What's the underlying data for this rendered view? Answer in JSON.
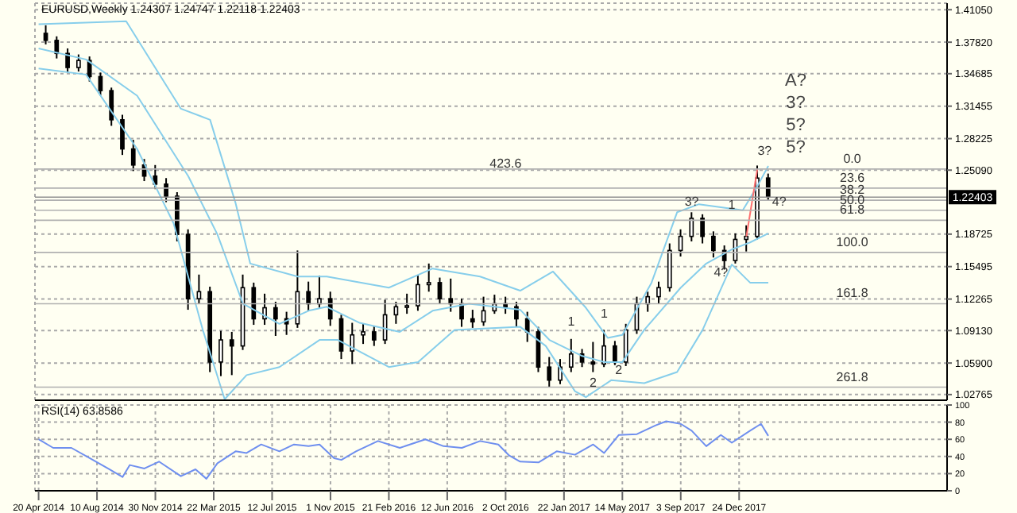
{
  "chart_data": [
    {
      "type": "candlestick",
      "title": "EURUSD,Weekly  1.24307 1.24747 1.22118 1.22403",
      "x": [
        "2014-05-04",
        "2014-05-25",
        "2014-06-15",
        "2014-07-06",
        "2014-07-27",
        "2014-08-17",
        "2014-09-07",
        "2014-09-28",
        "2014-10-19",
        "2014-11-09",
        "2014-11-30",
        "2014-12-21",
        "2015-01-11",
        "2015-02-01",
        "2015-02-22",
        "2015-03-15",
        "2015-04-05",
        "2015-04-26",
        "2015-05-17",
        "2015-06-07",
        "2015-06-28",
        "2015-07-19",
        "2015-08-09",
        "2015-08-30",
        "2015-09-20",
        "2015-10-11",
        "2015-11-01",
        "2015-11-22",
        "2015-12-13",
        "2016-01-03",
        "2016-01-24",
        "2016-02-14",
        "2016-03-06",
        "2016-03-27",
        "2016-04-17",
        "2016-05-08",
        "2016-05-29",
        "2016-06-19",
        "2016-07-10",
        "2016-07-31",
        "2016-08-21",
        "2016-09-11",
        "2016-10-02",
        "2016-10-23",
        "2016-11-13",
        "2016-12-04",
        "2016-12-25",
        "2017-01-15",
        "2017-02-05",
        "2017-02-26",
        "2017-03-19",
        "2017-04-09",
        "2017-04-30",
        "2017-05-21",
        "2017-06-11",
        "2017-07-02",
        "2017-07-23",
        "2017-08-13",
        "2017-09-03",
        "2017-09-24",
        "2017-10-15",
        "2017-11-05",
        "2017-11-26",
        "2017-12-17",
        "2018-01-07",
        "2018-01-28",
        "2018-02-18"
      ],
      "ohlc": [
        [
          1.387,
          1.395,
          1.376,
          1.38
        ],
        [
          1.38,
          1.384,
          1.362,
          1.367
        ],
        [
          1.367,
          1.372,
          1.348,
          1.353
        ],
        [
          1.353,
          1.366,
          1.349,
          1.36
        ],
        [
          1.36,
          1.364,
          1.339,
          1.344
        ],
        [
          1.344,
          1.348,
          1.325,
          1.33
        ],
        [
          1.33,
          1.333,
          1.295,
          1.301
        ],
        [
          1.301,
          1.306,
          1.266,
          1.272
        ],
        [
          1.272,
          1.281,
          1.25,
          1.256
        ],
        [
          1.256,
          1.262,
          1.24,
          1.245
        ],
        [
          1.245,
          1.256,
          1.232,
          1.237
        ],
        [
          1.237,
          1.243,
          1.219,
          1.225
        ],
        [
          1.225,
          1.229,
          1.18,
          1.187
        ],
        [
          1.187,
          1.192,
          1.112,
          1.123
        ],
        [
          1.123,
          1.147,
          1.118,
          1.13
        ],
        [
          1.13,
          1.135,
          1.05,
          1.06
        ],
        [
          1.06,
          1.091,
          1.046,
          1.082
        ],
        [
          1.082,
          1.09,
          1.047,
          1.076
        ],
        [
          1.076,
          1.147,
          1.072,
          1.134
        ],
        [
          1.134,
          1.139,
          1.097,
          1.103
        ],
        [
          1.103,
          1.128,
          1.097,
          1.114
        ],
        [
          1.114,
          1.12,
          1.086,
          1.103
        ],
        [
          1.103,
          1.11,
          1.087,
          1.098
        ],
        [
          1.098,
          1.171,
          1.094,
          1.13
        ],
        [
          1.13,
          1.14,
          1.111,
          1.118
        ],
        [
          1.118,
          1.146,
          1.114,
          1.123
        ],
        [
          1.123,
          1.13,
          1.096,
          1.103
        ],
        [
          1.103,
          1.107,
          1.063,
          1.071
        ],
        [
          1.071,
          1.099,
          1.058,
          1.087
        ],
        [
          1.087,
          1.098,
          1.078,
          1.09
        ],
        [
          1.09,
          1.096,
          1.076,
          1.082
        ],
        [
          1.082,
          1.122,
          1.078,
          1.107
        ],
        [
          1.107,
          1.12,
          1.098,
          1.115
        ],
        [
          1.115,
          1.128,
          1.108,
          1.116
        ],
        [
          1.116,
          1.146,
          1.111,
          1.137
        ],
        [
          1.137,
          1.158,
          1.13,
          1.139
        ],
        [
          1.139,
          1.144,
          1.118,
          1.123
        ],
        [
          1.123,
          1.143,
          1.11,
          1.118
        ],
        [
          1.118,
          1.123,
          1.095,
          1.103
        ],
        [
          1.103,
          1.112,
          1.094,
          1.1
        ],
        [
          1.1,
          1.125,
          1.096,
          1.111
        ],
        [
          1.111,
          1.127,
          1.108,
          1.118
        ],
        [
          1.118,
          1.125,
          1.108,
          1.115
        ],
        [
          1.115,
          1.12,
          1.095,
          1.103
        ],
        [
          1.103,
          1.11,
          1.08,
          1.09
        ],
        [
          1.09,
          1.095,
          1.05,
          1.055
        ],
        [
          1.055,
          1.065,
          1.035,
          1.042
        ],
        [
          1.042,
          1.063,
          1.038,
          1.055
        ],
        [
          1.055,
          1.083,
          1.05,
          1.068
        ],
        [
          1.068,
          1.073,
          1.055,
          1.06
        ],
        [
          1.06,
          1.08,
          1.05,
          1.058
        ],
        [
          1.058,
          1.092,
          1.055,
          1.076
        ],
        [
          1.076,
          1.081,
          1.057,
          1.06
        ],
        [
          1.06,
          1.098,
          1.056,
          1.092
        ],
        [
          1.092,
          1.125,
          1.088,
          1.118
        ],
        [
          1.118,
          1.13,
          1.11,
          1.125
        ],
        [
          1.125,
          1.14,
          1.118,
          1.134
        ],
        [
          1.134,
          1.178,
          1.13,
          1.171
        ],
        [
          1.171,
          1.192,
          1.165,
          1.185
        ],
        [
          1.185,
          1.209,
          1.18,
          1.203
        ],
        [
          1.203,
          1.207,
          1.178,
          1.185
        ],
        [
          1.185,
          1.19,
          1.164,
          1.171
        ],
        [
          1.171,
          1.176,
          1.152,
          1.161
        ],
        [
          1.161,
          1.188,
          1.158,
          1.182
        ],
        [
          1.182,
          1.196,
          1.17,
          1.185
        ],
        [
          1.185,
          1.2555,
          1.182,
          1.243
        ],
        [
          1.24307,
          1.24747,
          1.22118,
          1.22403
        ]
      ],
      "series": [
        {
          "type": "line",
          "color": "#87ceeb",
          "x": [
            "2014-04-20",
            "2014-10-05",
            "2015-01-18",
            "2015-03-15",
            "2015-05-03",
            "2015-05-31",
            "2015-08-30",
            "2015-10-25",
            "2016-02-21",
            "2016-05-15",
            "2016-08-14",
            "2016-10-30",
            "2017-01-01",
            "2017-03-05",
            "2017-04-16",
            "2017-05-14",
            "2017-07-09",
            "2017-08-27",
            "2017-10-08",
            "2017-11-19",
            "2017-12-31",
            "2018-01-28",
            "2018-02-18"
          ],
          "values": [
            1.396,
            1.399,
            1.312,
            1.301,
            1.218,
            1.158,
            1.145,
            1.145,
            1.134,
            1.153,
            1.145,
            1.131,
            1.15,
            1.114,
            1.084,
            1.087,
            1.139,
            1.209,
            1.217,
            1.214,
            1.211,
            1.235,
            1.255
          ]
        },
        {
          "type": "line",
          "color": "#87ceeb",
          "x": [
            "2014-04-20",
            "2014-07-20",
            "2014-10-26",
            "2015-02-01",
            "2015-03-29",
            "2015-05-17",
            "2015-07-26",
            "2015-09-20",
            "2015-10-25",
            "2015-12-27",
            "2016-03-13",
            "2016-05-15",
            "2016-07-24",
            "2016-10-30",
            "2016-12-25",
            "2017-02-26",
            "2017-04-09",
            "2017-05-14",
            "2017-06-25",
            "2017-09-03",
            "2017-10-22",
            "2017-12-10",
            "2018-01-14",
            "2018-02-18"
          ],
          "values": [
            1.372,
            1.361,
            1.325,
            1.245,
            1.187,
            1.118,
            1.098,
            1.111,
            1.115,
            1.099,
            1.09,
            1.111,
            1.118,
            1.112,
            1.082,
            1.066,
            1.06,
            1.06,
            1.092,
            1.134,
            1.158,
            1.172,
            1.179,
            1.188
          ]
        },
        {
          "type": "line",
          "color": "#87ceeb",
          "x": [
            "2014-04-20",
            "2014-07-20",
            "2014-10-26",
            "2015-01-04",
            "2015-03-01",
            "2015-04-12",
            "2015-05-24",
            "2015-07-26",
            "2015-10-11",
            "2015-11-15",
            "2016-02-21",
            "2016-04-17",
            "2016-06-26",
            "2016-10-30",
            "2016-12-18",
            "2017-02-12",
            "2017-03-05",
            "2017-04-23",
            "2017-06-25",
            "2017-08-27",
            "2017-10-15",
            "2017-12-10",
            "2018-01-14",
            "2018-02-18"
          ],
          "values": [
            1.352,
            1.346,
            1.272,
            1.198,
            1.092,
            1.023,
            1.047,
            1.055,
            1.082,
            1.082,
            1.055,
            1.06,
            1.092,
            1.095,
            1.076,
            1.031,
            1.025,
            1.042,
            1.039,
            1.05,
            1.092,
            1.157,
            1.139,
            1.139
          ]
        },
        {
          "type": "line",
          "color": "#ff7070",
          "x": [
            "2018-01-07",
            "2018-01-28"
          ],
          "values": [
            1.185,
            1.252
          ]
        }
      ],
      "xlim": [
        "2014-04-13",
        "2019-01-27"
      ],
      "xticks": [
        {
          "value": "2014-04-20",
          "label": null
        },
        {
          "value": "2014-08-10",
          "label": null
        },
        {
          "value": "2014-11-30",
          "label": null
        },
        {
          "value": "2015-03-22",
          "label": null
        },
        {
          "value": "2015-07-12",
          "label": null
        },
        {
          "value": "2015-11-01",
          "label": null
        },
        {
          "value": "2016-02-21",
          "label": null
        },
        {
          "value": "2016-06-12",
          "label": null
        },
        {
          "value": "2016-10-02",
          "label": null
        },
        {
          "value": "2017-01-22",
          "label": null
        },
        {
          "value": "2017-05-14",
          "label": null
        },
        {
          "value": "2017-09-03",
          "label": null
        },
        {
          "value": "2017-12-24",
          "label": null
        }
      ],
      "ylim": [
        1.022,
        1.417
      ],
      "yticks": [
        {
          "value": 1.4105,
          "label": "1.41050"
        },
        {
          "value": 1.3782,
          "label": "1.37820"
        },
        {
          "value": 1.34685,
          "label": "1.34685"
        },
        {
          "value": 1.31455,
          "label": "1.31455"
        },
        {
          "value": 1.28225,
          "label": "1.28225"
        },
        {
          "value": 1.2509,
          "label": "1.25090"
        },
        {
          "value": 1.18725,
          "label": "1.18725"
        },
        {
          "value": 1.15495,
          "label": "1.15495"
        },
        {
          "value": 1.12265,
          "label": "1.12265"
        },
        {
          "value": 1.0913,
          "label": "1.09130"
        },
        {
          "value": 1.059,
          "label": "1.05900"
        },
        {
          "value": 1.02765,
          "label": "1.02765"
        }
      ],
      "tick_labels": "y",
      "grid": true,
      "ref_lines": [
        {
          "axis": "y",
          "value": 1.22403,
          "label": "1.22403",
          "color": "#909090"
        },
        {
          "axis": "y",
          "value": 1.252,
          "color": "#b0b0b0"
        },
        {
          "axis": "y",
          "value": 1.233,
          "color": "#b0b0b0"
        },
        {
          "axis": "y",
          "value": 1.221,
          "color": "#b0b0b0"
        },
        {
          "axis": "y",
          "value": 1.211,
          "color": "#b0b0b0"
        },
        {
          "axis": "y",
          "value": 1.201,
          "color": "#b0b0b0"
        },
        {
          "axis": "y",
          "value": 1.169,
          "color": "#b0b0b0"
        },
        {
          "axis": "y",
          "value": 1.118,
          "color": "#b0b0b0"
        },
        {
          "axis": "y",
          "value": 1.035,
          "color": "#b0b0b0"
        }
      ],
      "annotations": [
        {
          "text": "423.6",
          "x": "2016-10-02",
          "y": 1.247
        },
        {
          "text": "1",
          "x": "2017-02-05",
          "y": 1.09
        },
        {
          "text": "2",
          "x": "2017-03-19",
          "y": 1.029
        },
        {
          "text": "1",
          "x": "2017-04-09",
          "y": 1.098
        },
        {
          "text": "2",
          "x": "2017-05-07",
          "y": 1.042
        },
        {
          "text": "3?",
          "x": "2017-09-24",
          "y": 1.209
        },
        {
          "text": "4?",
          "x": "2017-11-19",
          "y": 1.139
        },
        {
          "text": "1",
          "x": "2017-12-10",
          "y": 1.206
        },
        {
          "text": "3?",
          "x": "2018-02-11",
          "y": 1.26
        },
        {
          "text": "4?",
          "x": "2018-03-11",
          "y": 1.209
        },
        {
          "text": "0.0",
          "x": "2018-07-29",
          "y": 1.252
        },
        {
          "text": "23.6",
          "x": "2018-07-29",
          "y": 1.233
        },
        {
          "text": "38.2",
          "x": "2018-07-29",
          "y": 1.221
        },
        {
          "text": "50.0",
          "x": "2018-07-29",
          "y": 1.211
        },
        {
          "text": "61.8",
          "x": "2018-07-29",
          "y": 1.201
        },
        {
          "text": "100.0",
          "x": "2018-07-29",
          "y": 1.169
        },
        {
          "text": "161.8",
          "x": "2018-07-29",
          "y": 1.118
        },
        {
          "text": "261.8",
          "x": "2018-07-29",
          "y": 1.035
        },
        "A?",
        "3?",
        "5?",
        "5?"
      ]
    },
    {
      "type": "line",
      "title": "RSI(14) 63.8586",
      "series": [
        {
          "color": "#6f8fef",
          "x": [
            "2014-04-20",
            "2014-05-18",
            "2014-06-22",
            "2014-07-27",
            "2014-08-31",
            "2014-09-28",
            "2014-10-12",
            "2014-11-09",
            "2014-12-07",
            "2015-01-18",
            "2015-02-15",
            "2015-03-08",
            "2015-03-29",
            "2015-05-03",
            "2015-05-24",
            "2015-06-21",
            "2015-07-26",
            "2015-08-23",
            "2015-09-20",
            "2015-10-11",
            "2015-11-08",
            "2015-11-22",
            "2015-12-20",
            "2016-01-31",
            "2016-03-13",
            "2016-05-01",
            "2016-06-05",
            "2016-07-10",
            "2016-08-14",
            "2016-09-18",
            "2016-10-09",
            "2016-10-30",
            "2016-12-04",
            "2017-01-08",
            "2017-02-12",
            "2017-03-19",
            "2017-04-09",
            "2017-05-07",
            "2017-06-11",
            "2017-07-16",
            "2017-08-06",
            "2017-09-03",
            "2017-09-24",
            "2017-10-22",
            "2017-11-19",
            "2017-12-10",
            "2018-01-14",
            "2018-02-04",
            "2018-02-18"
          ],
          "values": [
            60,
            50,
            50,
            38,
            26,
            16,
            30,
            26,
            34,
            17,
            25,
            14,
            32,
            46,
            44,
            54,
            46,
            54,
            52,
            54,
            38,
            36,
            46,
            58,
            50,
            60,
            52,
            50,
            58,
            54,
            41,
            34,
            33,
            46,
            42,
            54,
            44,
            65,
            66,
            76,
            81,
            78,
            70,
            52,
            65,
            56,
            70,
            78,
            64
          ]
        }
      ],
      "xlim": [
        "2014-04-13",
        "2019-01-27"
      ],
      "xticks": [
        {
          "value": "2014-04-20",
          "label": "20 Apr 2014"
        },
        {
          "value": "2014-08-10",
          "label": "10 Aug 2014"
        },
        {
          "value": "2014-11-30",
          "label": "30 Nov 2014"
        },
        {
          "value": "2015-03-22",
          "label": "22 Mar 2015"
        },
        {
          "value": "2015-07-12",
          "label": "12 Jul 2015"
        },
        {
          "value": "2015-11-01",
          "label": "1 Nov 2015"
        },
        {
          "value": "2016-02-21",
          "label": "21 Feb 2016"
        },
        {
          "value": "2016-06-12",
          "label": "12 Jun 2016"
        },
        {
          "value": "2016-10-02",
          "label": "2 Oct 2016"
        },
        {
          "value": "2017-01-22",
          "label": "22 Jan 2017"
        },
        {
          "value": "2017-05-14",
          "label": "14 May 2017"
        },
        {
          "value": "2017-09-03",
          "label": "3 Sep 2017"
        },
        {
          "value": "2017-12-24",
          "label": "24 Dec 2017"
        }
      ],
      "ylim": [
        0,
        100
      ],
      "yticks": [
        0,
        20,
        40,
        60,
        80,
        100
      ],
      "grid": true
    }
  ]
}
